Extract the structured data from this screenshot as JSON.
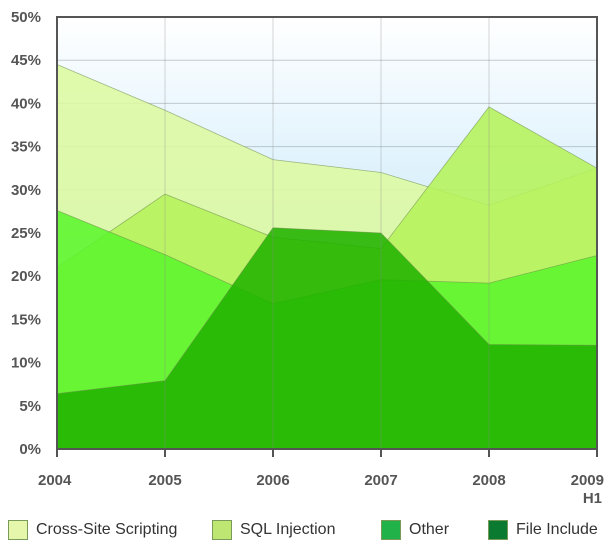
{
  "chart_data": {
    "type": "area",
    "title": "",
    "xlabel": "",
    "ylabel": "",
    "categories": [
      "2004",
      "2005",
      "2006",
      "2007",
      "2008",
      "2009"
    ],
    "category_sublabels": [
      "",
      "",
      "",
      "",
      "",
      "H1"
    ],
    "ylim": [
      0,
      50
    ],
    "y_ticks": [
      "0%",
      "5%",
      "10%",
      "15%",
      "20%",
      "25%",
      "30%",
      "35%",
      "40%",
      "45%",
      "50%"
    ],
    "grid": true,
    "legend_position": "bottom",
    "series": [
      {
        "name": "Cross-Site Scripting",
        "values": [
          44.5,
          39.2,
          33.5,
          32,
          28.2,
          32.5
        ],
        "color": "#ddf9a0"
      },
      {
        "name": "SQL Injection",
        "values": [
          21,
          29.5,
          24.5,
          23.2,
          39.6,
          32.5
        ],
        "color": "#b5f25a"
      },
      {
        "name": "Other",
        "values": [
          27.6,
          22.5,
          16.8,
          19.6,
          19.2,
          22.4
        ],
        "color": "#5cf52e"
      },
      {
        "name": "File Include",
        "values": [
          6.4,
          7.9,
          25.6,
          25,
          12.1,
          12
        ],
        "color": "#21b300"
      }
    ],
    "legend": [
      {
        "label": "Cross-Site Scripting",
        "color": "#e4f7aa"
      },
      {
        "label": "SQL Injection",
        "color": "#bde672"
      },
      {
        "label": "Other",
        "color": "#22b24a"
      },
      {
        "label": "File Include",
        "color": "#0a7a30"
      }
    ]
  }
}
